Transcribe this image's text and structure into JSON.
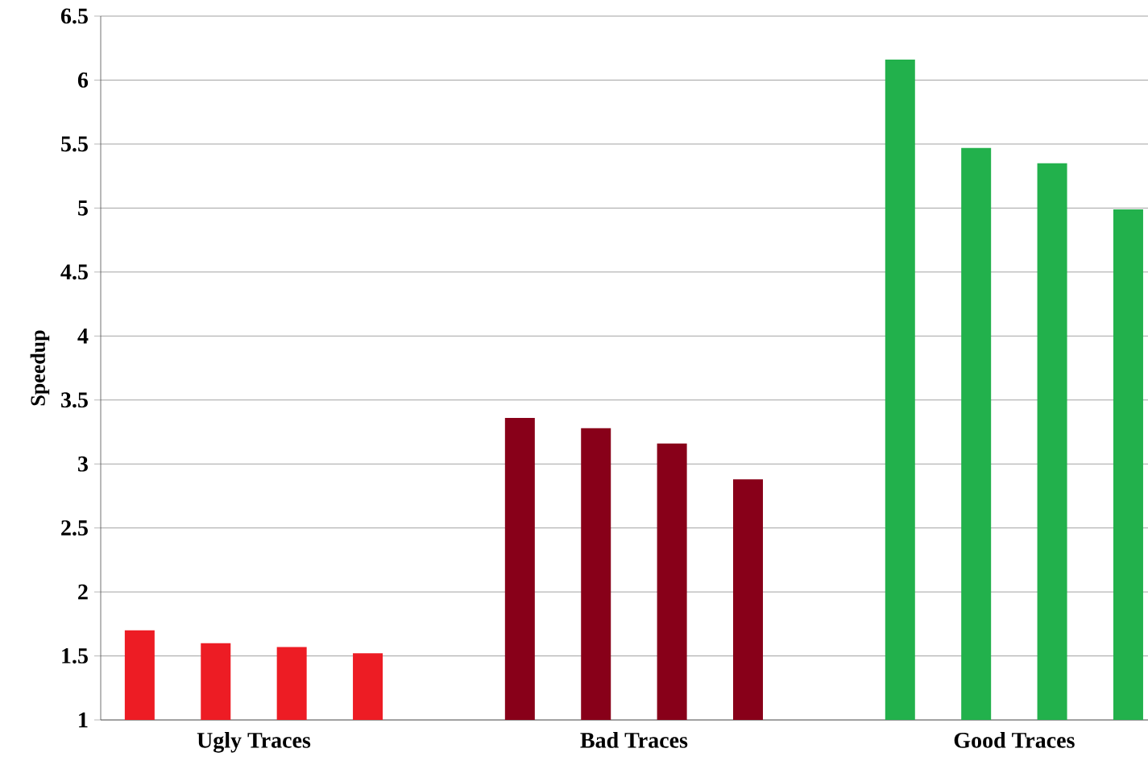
{
  "chart_data": {
    "type": "bar",
    "ylabel": "Speedup",
    "categories": [
      "Ugly Traces",
      "Bad Traces",
      "Good Traces"
    ],
    "series": [
      {
        "colors": [
          "#ed1c24",
          "#880019",
          "#22b14c"
        ],
        "values": [
          1.7,
          3.36,
          6.16
        ]
      },
      {
        "colors": [
          "#ed1c24",
          "#880019",
          "#22b14c"
        ],
        "values": [
          1.6,
          3.28,
          5.47
        ]
      },
      {
        "colors": [
          "#ed1c24",
          "#880019",
          "#22b14c"
        ],
        "values": [
          1.57,
          3.16,
          5.35
        ]
      },
      {
        "colors": [
          "#ed1c24",
          "#880019",
          "#22b14c"
        ],
        "values": [
          1.52,
          2.88,
          4.99
        ]
      }
    ],
    "ylim": [
      1,
      6.5
    ],
    "yticks": [
      1,
      1.5,
      2,
      2.5,
      3,
      3.5,
      4,
      4.5,
      5,
      5.5,
      6,
      6.5
    ],
    "grid": "y"
  }
}
